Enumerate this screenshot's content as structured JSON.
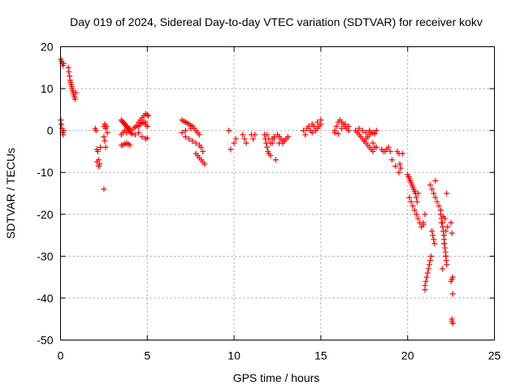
{
  "chart_data": {
    "type": "scatter",
    "title": "Day 019 of 2024, Sidereal Day-to-day VTEC variation (SDTVAR) for receiver kokv",
    "xlabel": "GPS time / hours",
    "ylabel": "SDTVAR / TECUs",
    "xlim": [
      0,
      25
    ],
    "ylim": [
      -50,
      20
    ],
    "xticks": [
      0,
      5,
      10,
      15,
      20,
      25
    ],
    "yticks": [
      -50,
      -40,
      -30,
      -20,
      -10,
      0,
      10,
      20
    ],
    "xtick_labels": [
      "0",
      "5",
      "10",
      "15",
      "20",
      "25"
    ],
    "ytick_labels": [
      "-50",
      "-40",
      "-30",
      "-20",
      "-10",
      "0",
      "10",
      "20"
    ],
    "grid": true,
    "marker": "+",
    "point_color": "#ff0000",
    "series": [
      {
        "name": "SDTVAR",
        "x": [
          0.02,
          0.06,
          0.1,
          0.14,
          0.18,
          0.02,
          0.05,
          0.08,
          0.12,
          0.15,
          0.18,
          0.45,
          0.48,
          0.52,
          0.55,
          0.58,
          0.61,
          0.64,
          0.67,
          0.7,
          0.73,
          0.76,
          0.8,
          0.84,
          0.88,
          2.0,
          2.05,
          2.1,
          2.15,
          2.2,
          2.25,
          2.1,
          2.2,
          2.3,
          2.5,
          2.55,
          2.6,
          2.65,
          2.7,
          2.5,
          2.55,
          2.6,
          2.5,
          3.5,
          3.55,
          3.6,
          3.65,
          3.7,
          3.75,
          3.8,
          3.85,
          3.9,
          3.95,
          4.0,
          4.05,
          4.1,
          3.5,
          3.6,
          3.7,
          3.8,
          3.9,
          4.0,
          3.5,
          3.6,
          3.7,
          3.8,
          3.9,
          4.0,
          4.2,
          4.3,
          4.4,
          4.5,
          4.6,
          4.7,
          4.8,
          4.9,
          5.0,
          5.05,
          4.5,
          4.6,
          4.7,
          4.8,
          4.9,
          5.0,
          4.3,
          4.5,
          4.7,
          4.9,
          5.0,
          4.9,
          5.0,
          7.0,
          7.1,
          7.2,
          7.3,
          7.4,
          7.5,
          7.6,
          7.7,
          7.8,
          7.9,
          8.0,
          7.0,
          7.2,
          7.4,
          7.6,
          7.8,
          8.0,
          8.1,
          8.2,
          7.8,
          7.9,
          8.0,
          8.1,
          8.2,
          8.3,
          7.2,
          7.5,
          9.7,
          9.8,
          10.0,
          10.1,
          10.5,
          10.6,
          10.7,
          11.0,
          11.1,
          11.2,
          11.75,
          11.8,
          11.85,
          11.9,
          11.95,
          12.0,
          12.1,
          11.9,
          12.0,
          12.1,
          12.2,
          12.3,
          12.4,
          12.2,
          12.3,
          12.5,
          12.6,
          12.7,
          12.8,
          12.9,
          13.0,
          13.1,
          12.6,
          12.8,
          13.0,
          14.0,
          14.1,
          14.2,
          14.3,
          14.4,
          14.5,
          14.6,
          14.7,
          14.8,
          14.9,
          15.0,
          14.5,
          14.8,
          15.0,
          15.8,
          15.9,
          16.0,
          16.1,
          16.2,
          16.3,
          16.4,
          16.5,
          16.6,
          15.8,
          16.0,
          16.2,
          16.4,
          16.6,
          16.2,
          17.0,
          17.1,
          17.2,
          17.3,
          17.4,
          17.5,
          17.6,
          17.7,
          17.8,
          17.9,
          18.0,
          18.1,
          18.2,
          17.2,
          17.4,
          17.6,
          17.8,
          18.0,
          17.5,
          17.6,
          17.7,
          17.8,
          17.9,
          18.0,
          18.1,
          18.2,
          18.5,
          18.6,
          18.7,
          18.8,
          18.9,
          19.0,
          19.1,
          19.3,
          19.4,
          19.5,
          19.55,
          19.6,
          19.7,
          19.5,
          20.0,
          20.05,
          20.1,
          20.15,
          20.2,
          20.25,
          20.3,
          20.35,
          20.4,
          20.45,
          20.5,
          20.55,
          20.6,
          20.1,
          20.2,
          20.3,
          20.4,
          20.5,
          20.6,
          20.7,
          20.8,
          20.9,
          21.0,
          20.9,
          21.0,
          21.0,
          21.05,
          21.1,
          21.15,
          21.2,
          21.25,
          21.3,
          21.35,
          21.4,
          21.45,
          21.5,
          21.55,
          21.6,
          21.3,
          21.4,
          21.5,
          21.6,
          21.7,
          21.8,
          21.9,
          21.9,
          21.95,
          22.0,
          22.02,
          22.05,
          22.08,
          22.1,
          22.12,
          22.15,
          22.18,
          22.2,
          22.22,
          22.25,
          22.0,
          22.1,
          22.2,
          22.3,
          21.95,
          22.05,
          22.15,
          22.25,
          22.1,
          22.2,
          22.5,
          22.55,
          22.6,
          22.5,
          22.6,
          22.55,
          22.6,
          22.55,
          22.6,
          22.55
        ],
        "y": [
          17,
          16.5,
          16,
          15.5,
          16,
          2.5,
          1.5,
          0.5,
          -0.5,
          -1,
          0,
          15,
          14,
          13,
          12,
          11.5,
          11,
          10.5,
          10,
          9.5,
          9,
          8.5,
          8,
          7.5,
          9,
          0.5,
          0,
          -4.5,
          -5,
          -7,
          -8,
          -7.5,
          -8.5,
          -4,
          1,
          1.5,
          0.5,
          1,
          -0.5,
          -1.5,
          -2.5,
          -4,
          -14,
          2.5,
          2.2,
          2,
          1.8,
          1.5,
          1.3,
          1,
          0.8,
          0.5,
          0.3,
          0,
          -0.5,
          -0.8,
          -3.5,
          -3.5,
          -3.2,
          -3,
          -3.2,
          -3.5,
          -1,
          -0.5,
          0,
          -0.5,
          0,
          0.5,
          0.5,
          0.8,
          1.2,
          2,
          2.5,
          3,
          3.5,
          4,
          3.8,
          3.5,
          1,
          1.5,
          1.8,
          2,
          1.5,
          1,
          -1,
          -0.5,
          -1.5,
          -2,
          -1.8,
          2,
          1,
          2.5,
          2.2,
          2,
          1.8,
          1.5,
          1.2,
          1,
          0.5,
          0,
          -0.5,
          -1,
          -0.5,
          -1.5,
          -2,
          -2.5,
          -3,
          -3.5,
          -4,
          -5,
          -5.5,
          -6,
          -6.5,
          -7,
          -7.5,
          -8,
          0,
          0.5,
          0,
          -4.5,
          -3,
          -2,
          -1,
          -2,
          -3,
          -1,
          -2,
          -1,
          -1,
          -2,
          -3,
          -4,
          -5,
          -5.5,
          -6,
          -1,
          -2,
          -3,
          -2,
          -1.5,
          -7,
          -3,
          -2,
          -1,
          -1.5,
          -2,
          -3,
          -2.5,
          -2,
          -1.5,
          -3,
          -2.5,
          -2,
          0,
          -1,
          0.5,
          1,
          0,
          1.5,
          1,
          0,
          0.5,
          1,
          1.5,
          -0.5,
          2,
          2.5,
          0,
          1,
          2,
          2.5,
          2,
          1.5,
          1,
          0.5,
          0,
          -0.5,
          -0.8,
          0.5,
          1.5,
          1,
          0.5,
          0,
          -0.5,
          -1,
          -1.5,
          -2,
          -2.5,
          -3,
          -3.5,
          -4,
          -4.5,
          -5,
          -4,
          0,
          0.5,
          0,
          -0.5,
          0,
          -3,
          -2.5,
          -2,
          -1.5,
          -1,
          -0.5,
          -0.5,
          -0.8,
          -4,
          -4.5,
          -5,
          -5,
          -4.5,
          -4,
          -5,
          -7,
          -8.5,
          -5,
          -5.5,
          -8,
          -9,
          -5.5,
          -10,
          -10.5,
          -11,
          -11.5,
          -12,
          -12.5,
          -13,
          -13.5,
          -14,
          -14.5,
          -15,
          -16,
          -17,
          -15,
          -16,
          -17,
          -18,
          -19,
          -20,
          -21,
          -22,
          -23,
          -22,
          -20,
          -22.5,
          -37,
          -38,
          -36,
          -35,
          -34,
          -33,
          -32,
          -31,
          -30,
          -24,
          -25,
          -26,
          -27,
          -12,
          -13,
          -14,
          -15,
          -16,
          -17,
          -18,
          -19,
          -20,
          -21,
          -22,
          -23,
          -24,
          -25,
          -26,
          -27,
          -28,
          -29,
          -30,
          -31,
          -32,
          -33,
          -25,
          -24,
          -23,
          -22,
          -20.5,
          -21,
          -15,
          -27,
          -30,
          -22,
          -24.5,
          -35,
          -36,
          -39,
          -45,
          -46,
          -45.5,
          -46,
          -35.5
        ]
      }
    ]
  }
}
